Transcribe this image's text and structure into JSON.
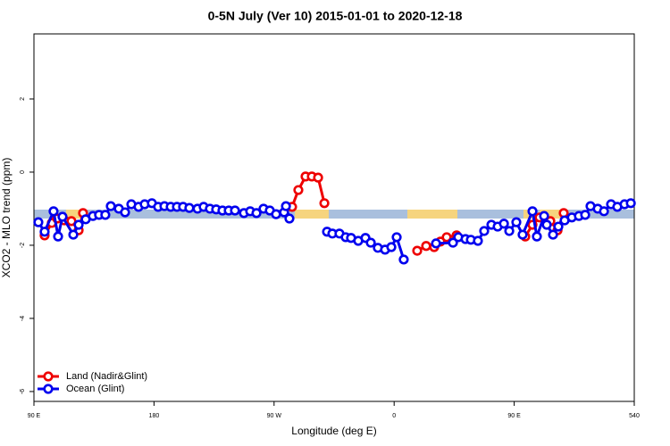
{
  "chart_data": {
    "type": "line",
    "title": "0-5N July (Ver 10)   2015-01-01 to 2020-12-18",
    "x_label": "Longitude (deg E)",
    "y_label": "XCO2 - MLO trend (ppm)",
    "xlim": [
      90,
      540
    ],
    "xticks": [
      {
        "value": 90,
        "label": "90 E"
      },
      180,
      {
        "value": 270,
        "label": "90 W"
      },
      {
        "value": 360,
        "label": "0"
      },
      {
        "value": 450,
        "label": "90 E"
      },
      540
    ],
    "ylim": [
      -6.27,
      3.78
    ],
    "yticks": [
      -6,
      -4,
      -2,
      0,
      2
    ],
    "legend": "bottom-left",
    "series": [
      {
        "name": "Land (Nadir&Glint)",
        "color": "#ee0000",
        "x": [
          98.0,
          103.4,
          107.4,
          112.8,
          118.1,
          123.5,
          126.8,
          null,
          283.5,
          288.2,
          293.6,
          298.3,
          303.0,
          307.7,
          null,
          377.3,
          384.0,
          390.0,
          394.7,
          399.4,
          406.8,
          null,
          458.3,
          463.7,
          469.0,
          477.1,
          482.5,
          487.1
        ],
        "values": [
          -1.73,
          -1.39,
          -1.27,
          -1.32,
          -1.34,
          -1.59,
          -1.12,
          null,
          -0.95,
          -0.49,
          -0.12,
          -0.12,
          -0.15,
          -0.85,
          null,
          -2.15,
          -2.02,
          -2.05,
          -1.9,
          -1.78,
          -1.73,
          null,
          -1.76,
          -1.44,
          -1.24,
          -1.34,
          -1.59,
          -1.12
        ]
      },
      {
        "name": "Ocean (Glint)",
        "color": "#0000ee",
        "x": [
          93.3,
          98.0,
          104.7,
          108.1,
          111.4,
          119.5,
          123.5,
          128.8,
          134.2,
          138.8,
          143.5,
          147.6,
          153.6,
          158.3,
          163.0,
          168.4,
          173.0,
          178.4,
          183.1,
          187.8,
          192.5,
          197.2,
          201.8,
          206.5,
          212.6,
          217.2,
          221.9,
          226.6,
          231.3,
          236.0,
          240.7,
          247.4,
          252.1,
          256.8,
          262.1,
          266.8,
          271.5,
          277.5,
          278.9,
          281.5,
          null,
          309.7,
          313.7,
          319.0,
          323.7,
          327.7,
          333.1,
          338.5,
          342.5,
          347.8,
          353.2,
          357.9,
          361.9,
          367.2,
          null,
          391.4,
          404.1,
          408.1,
          413.5,
          417.5,
          422.8,
          427.5,
          432.9,
          437.6,
          442.3,
          446.3,
          451.6,
          456.3,
          463.7,
          467.0,
          472.4,
          474.4,
          479.1,
          483.1,
          487.8,
          493.2,
          498.5,
          503.2,
          507.2,
          512.6,
          517.3,
          522.6,
          527.3,
          532.7,
          537.4
        ],
        "values": [
          -1.37,
          -1.63,
          -1.07,
          -1.76,
          -1.22,
          -1.71,
          -1.44,
          -1.29,
          -1.2,
          -1.17,
          -1.17,
          -0.93,
          -1.0,
          -1.1,
          -0.88,
          -0.95,
          -0.88,
          -0.85,
          -0.95,
          -0.93,
          -0.95,
          -0.95,
          -0.95,
          -0.98,
          -1.0,
          -0.95,
          -1.0,
          -1.02,
          -1.05,
          -1.05,
          -1.05,
          -1.12,
          -1.07,
          -1.12,
          -1.0,
          -1.05,
          -1.15,
          -1.1,
          -0.93,
          -1.27,
          null,
          -1.63,
          -1.68,
          -1.68,
          -1.78,
          -1.8,
          -1.88,
          -1.8,
          -1.93,
          -2.07,
          -2.12,
          -2.05,
          -1.78,
          -2.39,
          null,
          -1.95,
          -1.93,
          -1.78,
          -1.83,
          -1.85,
          -1.88,
          -1.61,
          -1.44,
          -1.49,
          -1.41,
          -1.61,
          -1.37,
          -1.71,
          -1.07,
          -1.76,
          -1.2,
          -1.44,
          -1.71,
          -1.49,
          -1.32,
          -1.24,
          -1.2,
          -1.17,
          -0.93,
          -1.0,
          -1.07,
          -0.88,
          -0.95,
          -0.88,
          -0.85
        ]
      }
    ]
  }
}
